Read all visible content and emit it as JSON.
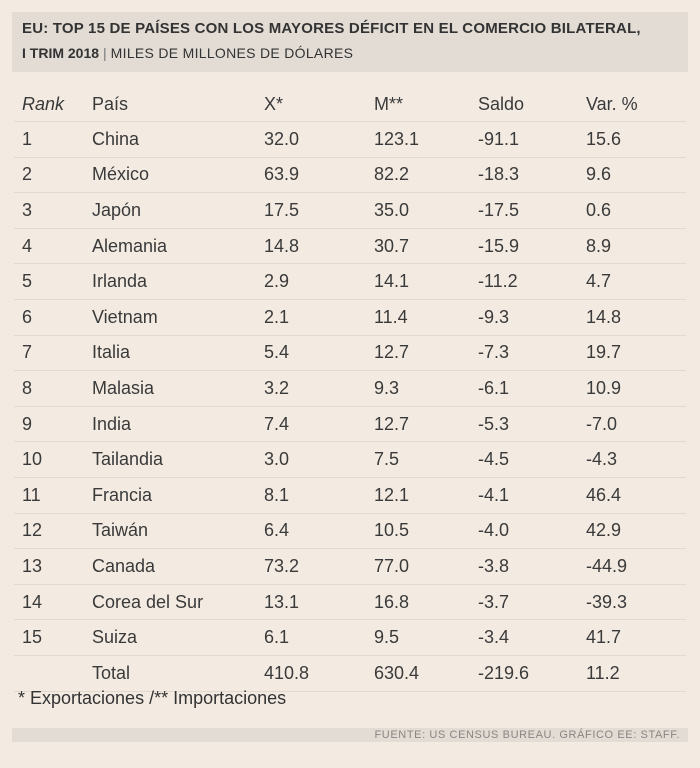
{
  "chart_data": {
    "type": "table",
    "title": "EU: TOP 15 DE PAÍSES CON LOS MAYORES DÉFICIT EN EL COMERCIO BILATERAL,",
    "subtitle_period": "I TRIM 2018",
    "subtitle_units": "MILES DE MILLONES DE DÓLARES",
    "columns": [
      "Rank",
      "País",
      "X*",
      "M**",
      "Saldo",
      "Var. %"
    ],
    "rows": [
      {
        "rank": "1",
        "pais": "China",
        "x": "32.0",
        "m": "123.1",
        "saldo": "-91.1",
        "var": "15.6"
      },
      {
        "rank": "2",
        "pais": "México",
        "x": "63.9",
        "m": "82.2",
        "saldo": "-18.3",
        "var": "9.6"
      },
      {
        "rank": "3",
        "pais": "Japón",
        "x": "17.5",
        "m": "35.0",
        "saldo": "-17.5",
        "var": "0.6"
      },
      {
        "rank": "4",
        "pais": "Alemania",
        "x": "14.8",
        "m": "30.7",
        "saldo": "-15.9",
        "var": "8.9"
      },
      {
        "rank": "5",
        "pais": "Irlanda",
        "x": "2.9",
        "m": "14.1",
        "saldo": "-11.2",
        "var": "4.7"
      },
      {
        "rank": "6",
        "pais": "Vietnam",
        "x": "2.1",
        "m": "11.4",
        "saldo": "-9.3",
        "var": "14.8"
      },
      {
        "rank": "7",
        "pais": "Italia",
        "x": "5.4",
        "m": "12.7",
        "saldo": "-7.3",
        "var": "19.7"
      },
      {
        "rank": "8",
        "pais": "Malasia",
        "x": "3.2",
        "m": "9.3",
        "saldo": "-6.1",
        "var": "10.9"
      },
      {
        "rank": "9",
        "pais": "India",
        "x": "7.4",
        "m": "12.7",
        "saldo": "-5.3",
        "var": "-7.0"
      },
      {
        "rank": "10",
        "pais": "Tailandia",
        "x": "3.0",
        "m": "7.5",
        "saldo": "-4.5",
        "var": "-4.3"
      },
      {
        "rank": "11",
        "pais": "Francia",
        "x": "8.1",
        "m": "12.1",
        "saldo": "-4.1",
        "var": "46.4"
      },
      {
        "rank": "12",
        "pais": "Taiwán",
        "x": "6.4",
        "m": "10.5",
        "saldo": "-4.0",
        "var": "42.9"
      },
      {
        "rank": "13",
        "pais": "Canada",
        "x": "73.2",
        "m": "77.0",
        "saldo": "-3.8",
        "var": "-44.9"
      },
      {
        "rank": "14",
        "pais": "Corea del Sur",
        "x": "13.1",
        "m": "16.8",
        "saldo": "-3.7",
        "var": "-39.3"
      },
      {
        "rank": "15",
        "pais": "Suiza",
        "x": "6.1",
        "m": "9.5",
        "saldo": "-3.4",
        "var": "41.7"
      },
      {
        "rank": "",
        "pais": "Total",
        "x": "410.8",
        "m": "630.4",
        "saldo": "-219.6",
        "var": "11.2"
      }
    ],
    "footnote": "* Exportaciones /** Importaciones",
    "source": "FUENTE: US CENSUS BUREAU.  GRÁFICO EE: STAFF."
  }
}
